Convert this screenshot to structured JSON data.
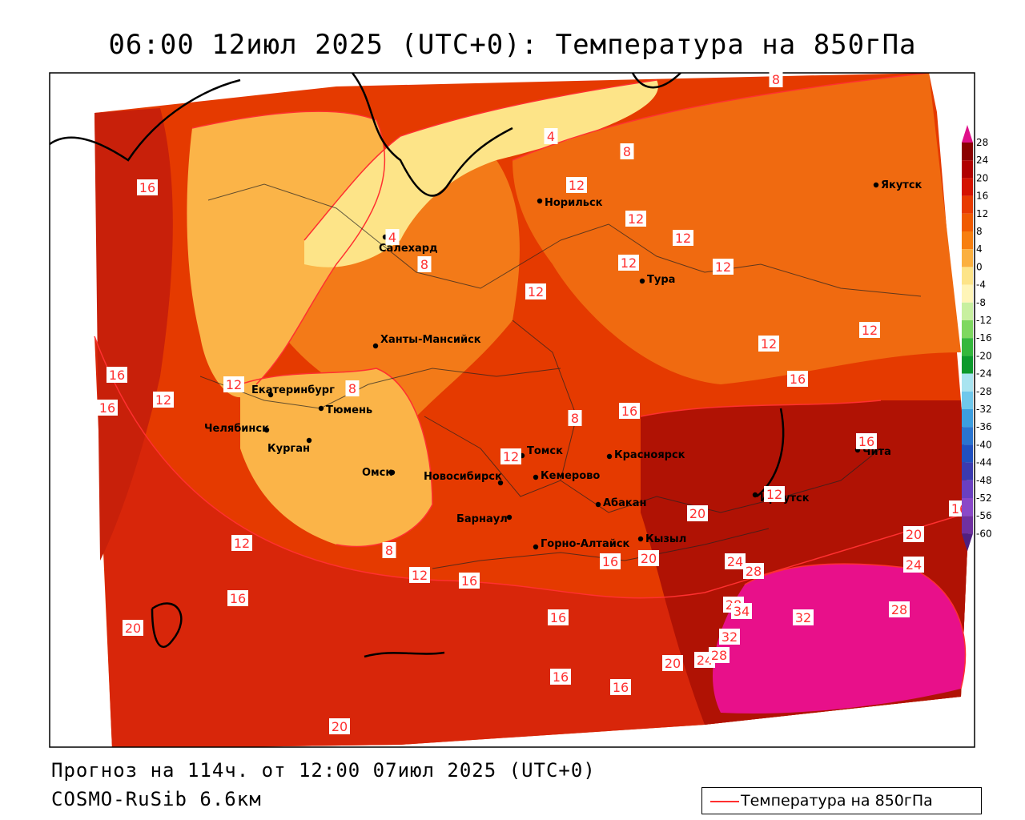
{
  "title": "06:00 12июл 2025 (UTC+0): Температура на 850гПа",
  "forecast_line": "Прогноз на 114ч. от 12:00 07июл 2025 (UTC+0)",
  "model_line": "COSMO-RuSib 6.6км",
  "legend_label": "Температура на 850гПа",
  "colorbar": {
    "ticks": [
      "28",
      "24",
      "20",
      "16",
      "12",
      "8",
      "4",
      "0",
      "-4",
      "-8",
      "-12",
      "-16",
      "-20",
      "-24",
      "-28",
      "-32",
      "-36",
      "-40",
      "-44",
      "-48",
      "-52",
      "-56",
      "-60"
    ],
    "colors": [
      "#8b0000",
      "#b00000",
      "#d41200",
      "#e83a00",
      "#f05a00",
      "#f77f10",
      "#fbb040",
      "#fde488",
      "#fff5b8",
      "#c8f0a0",
      "#7ed860",
      "#34b83c",
      "#0c9a2c",
      "#a8e4f0",
      "#6fc8ec",
      "#3c9ee0",
      "#2a74d0",
      "#2050c0",
      "#3b3ab0",
      "#6a3fc0",
      "#8a48c8",
      "#7030a0",
      "#502080"
    ],
    "top_color": "#e0108a"
  },
  "cities": [
    {
      "name": "Салехард",
      "lon": 66.6,
      "lat": 66.5
    },
    {
      "name": "Норильск",
      "lon": 88.2,
      "lat": 69.3
    },
    {
      "name": "Якутск",
      "lon": 129.7,
      "lat": 62.0
    },
    {
      "name": "Тура",
      "lon": 100.2,
      "lat": 64.3
    },
    {
      "name": "Ханты-Мансийск",
      "lon": 69.0,
      "lat": 61.0
    },
    {
      "name": "Екатеринбург",
      "lon": 60.6,
      "lat": 56.8
    },
    {
      "name": "Тюмень",
      "lon": 65.5,
      "lat": 57.2
    },
    {
      "name": "Челябинск",
      "lon": 61.4,
      "lat": 55.2
    },
    {
      "name": "Курган",
      "lon": 65.3,
      "lat": 55.4
    },
    {
      "name": "Омск",
      "lon": 73.4,
      "lat": 55.0
    },
    {
      "name": "Новосибирск",
      "lon": 82.9,
      "lat": 55.0
    },
    {
      "name": "Томск",
      "lon": 85.0,
      "lat": 56.5
    },
    {
      "name": "Кемерово",
      "lon": 86.1,
      "lat": 55.4
    },
    {
      "name": "Барнаул",
      "lon": 83.8,
      "lat": 53.3
    },
    {
      "name": "Красноярск",
      "lon": 92.9,
      "lat": 56.0
    },
    {
      "name": "Абакан",
      "lon": 91.4,
      "lat": 53.7
    },
    {
      "name": "Горно-Алтайск",
      "lon": 85.9,
      "lat": 51.9
    },
    {
      "name": "Кызыл",
      "lon": 94.4,
      "lat": 51.7
    },
    {
      "name": "Иркутск",
      "lon": 104.3,
      "lat": 52.3
    },
    {
      "name": "Чита",
      "lon": 113.5,
      "lat": 52.0
    }
  ],
  "contour_labels": [
    "8",
    "4",
    "8",
    "16",
    "12",
    "12",
    "12",
    "12",
    "12",
    "4",
    "8",
    "12",
    "12",
    "12",
    "16",
    "16",
    "12",
    "8",
    "8",
    "16",
    "12",
    "16",
    "16",
    "12",
    "12",
    "16",
    "20",
    "12",
    "8",
    "12",
    "16",
    "16",
    "20",
    "24",
    "28",
    "16",
    "20",
    "24",
    "28",
    "32",
    "28",
    "34",
    "32",
    "20",
    "24",
    "28",
    "16",
    "16",
    "20",
    "16",
    "20"
  ],
  "colors": {
    "contour": "#ff3030",
    "hot_core": "#e8108a"
  }
}
